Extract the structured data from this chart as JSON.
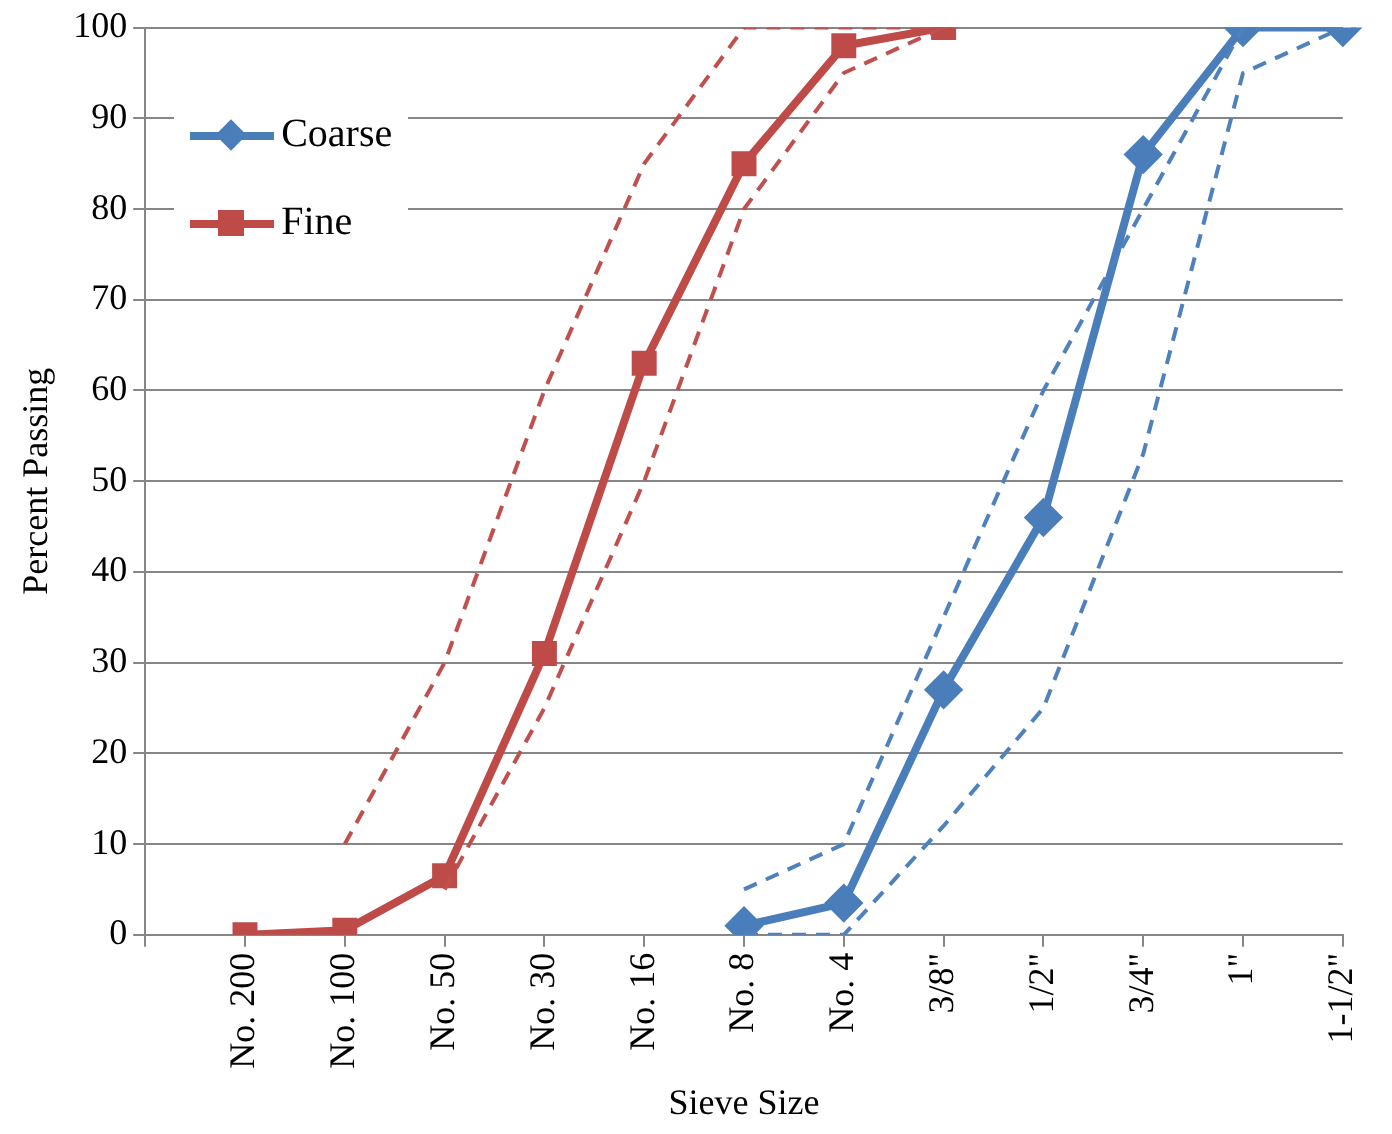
{
  "chart_data": {
    "type": "line",
    "xlabel": "Sieve Size",
    "ylabel": "Percent Passing",
    "categories": [
      null,
      "No. 200",
      "No. 100",
      "No. 50",
      "No. 30",
      "No. 16",
      "No. 8",
      "No. 4",
      "3/8\"",
      "1/2\"",
      "3/4\"",
      "1\"",
      "1-1/2\""
    ],
    "series": [
      {
        "name": "Coarse",
        "color": "#4a7ebb",
        "marker": "diamond",
        "line_style": "solid",
        "values": [
          null,
          null,
          null,
          null,
          null,
          null,
          1,
          3.5,
          27,
          46,
          86,
          100,
          100
        ]
      },
      {
        "name": "Fine",
        "color": "#be4b48",
        "marker": "square",
        "line_style": "solid",
        "values": [
          null,
          0,
          0.5,
          6.5,
          31,
          63,
          85,
          98,
          100,
          null,
          null,
          null,
          null
        ]
      },
      {
        "color": "#c0504d",
        "marker": "none",
        "line_style": "dashed",
        "values": [
          null,
          null,
          10,
          30,
          60,
          85,
          100,
          100,
          100,
          null,
          null,
          null,
          null
        ]
      },
      {
        "color": "#c0504d",
        "marker": "none",
        "line_style": "dashed",
        "values": [
          null,
          null,
          null,
          5,
          25,
          50,
          80,
          95,
          100,
          null,
          null,
          null,
          null
        ]
      },
      {
        "color": "#4f81bd",
        "marker": "none",
        "line_style": "dashed",
        "values": [
          null,
          null,
          null,
          null,
          null,
          null,
          5,
          10,
          35,
          60,
          80,
          100,
          100
        ]
      },
      {
        "color": "#4f81bd",
        "marker": "none",
        "line_style": "dashed",
        "values": [
          null,
          null,
          null,
          null,
          null,
          null,
          0,
          0,
          12,
          25,
          53,
          95,
          100
        ]
      }
    ],
    "ylim": [
      0,
      100
    ],
    "yticks": [
      0,
      10,
      20,
      30,
      40,
      50,
      60,
      70,
      80,
      90,
      100
    ],
    "grid": "y",
    "legend": "top left"
  }
}
